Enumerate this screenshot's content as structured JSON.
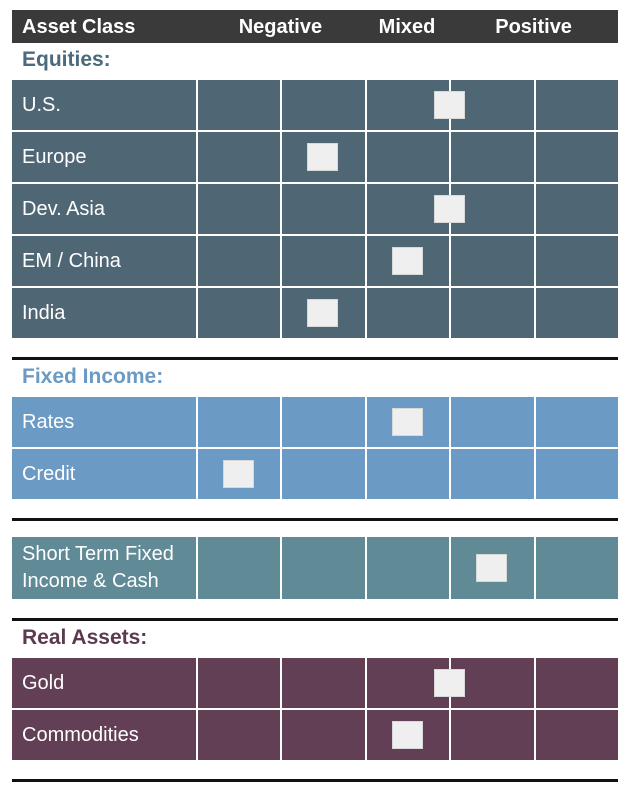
{
  "header": {
    "asset_class": "Asset Class",
    "columns": [
      "Negative",
      "Mixed",
      "Positive"
    ]
  },
  "sections": [
    {
      "title": "Equities:",
      "color": "#4f6775",
      "title_color": "#4a6a7d",
      "rows": [
        {
          "label": "U.S.",
          "position": 3.0
        },
        {
          "label": "Europe",
          "position": 1.5
        },
        {
          "label": "Dev. Asia",
          "position": 3.0
        },
        {
          "label": "EM / China",
          "position": 2.5
        },
        {
          "label": "India",
          "position": 1.5
        }
      ]
    },
    {
      "title": "Fixed Income:",
      "color": "#6b9ac4",
      "title_color": "#6b9ac4",
      "rows": [
        {
          "label": "Rates",
          "position": 2.5
        },
        {
          "label": "Credit",
          "position": 0.5
        }
      ]
    },
    {
      "color": "#5f8a96",
      "rows": [
        {
          "label": "Short Term Fixed Income & Cash",
          "position": 3.5
        }
      ]
    },
    {
      "title": "Real Assets:",
      "color": "#623f55",
      "title_color": "#5b3a50",
      "rows": [
        {
          "label": "Gold",
          "position": 3.0
        },
        {
          "label": "Commodities",
          "position": 2.5
        }
      ]
    }
  ]
}
